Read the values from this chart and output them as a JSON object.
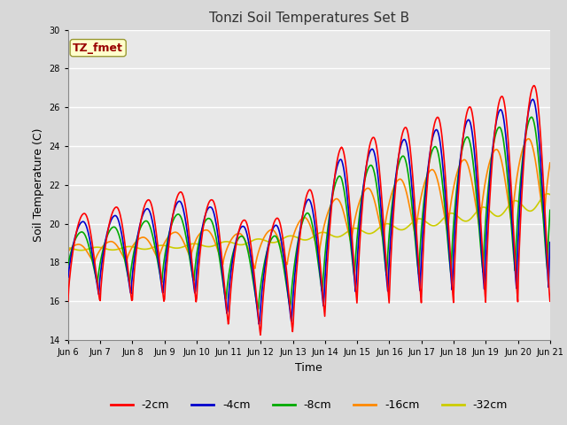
{
  "title": "Tonzi Soil Temperatures Set B",
  "xlabel": "Time",
  "ylabel": "Soil Temperature (C)",
  "ylim": [
    14,
    30
  ],
  "yticks": [
    14,
    16,
    18,
    20,
    22,
    24,
    26,
    28,
    30
  ],
  "fig_bg_color": "#d8d8d8",
  "plot_bg_color": "#e8e8e8",
  "annotation_text": "TZ_fmet",
  "annotation_color": "#990000",
  "annotation_bg": "#ffffcc",
  "annotation_border": "#999933",
  "series": {
    "-2cm": {
      "color": "#ff0000",
      "linewidth": 1.2
    },
    "-4cm": {
      "color": "#0000cc",
      "linewidth": 1.2
    },
    "-8cm": {
      "color": "#00aa00",
      "linewidth": 1.2
    },
    "-16cm": {
      "color": "#ff8800",
      "linewidth": 1.2
    },
    "-32cm": {
      "color": "#cccc00",
      "linewidth": 1.2
    }
  },
  "x_tick_labels": [
    "Jun 6",
    "Jun 7",
    "Jun 8",
    "Jun 9",
    "Jun 10",
    "Jun 11",
    "Jun 12",
    "Jun 13",
    "Jun 14",
    "Jun 15",
    "Jun 16",
    "Jun 17",
    "Jun 18",
    "Jun 19",
    "Jun 20",
    "Jun 21"
  ],
  "legend_order": [
    "-2cm",
    "-4cm",
    "-8cm",
    "-16cm",
    "-32cm"
  ],
  "legend_colors": [
    "#ff0000",
    "#0000cc",
    "#00aa00",
    "#ff8800",
    "#cccc00"
  ]
}
